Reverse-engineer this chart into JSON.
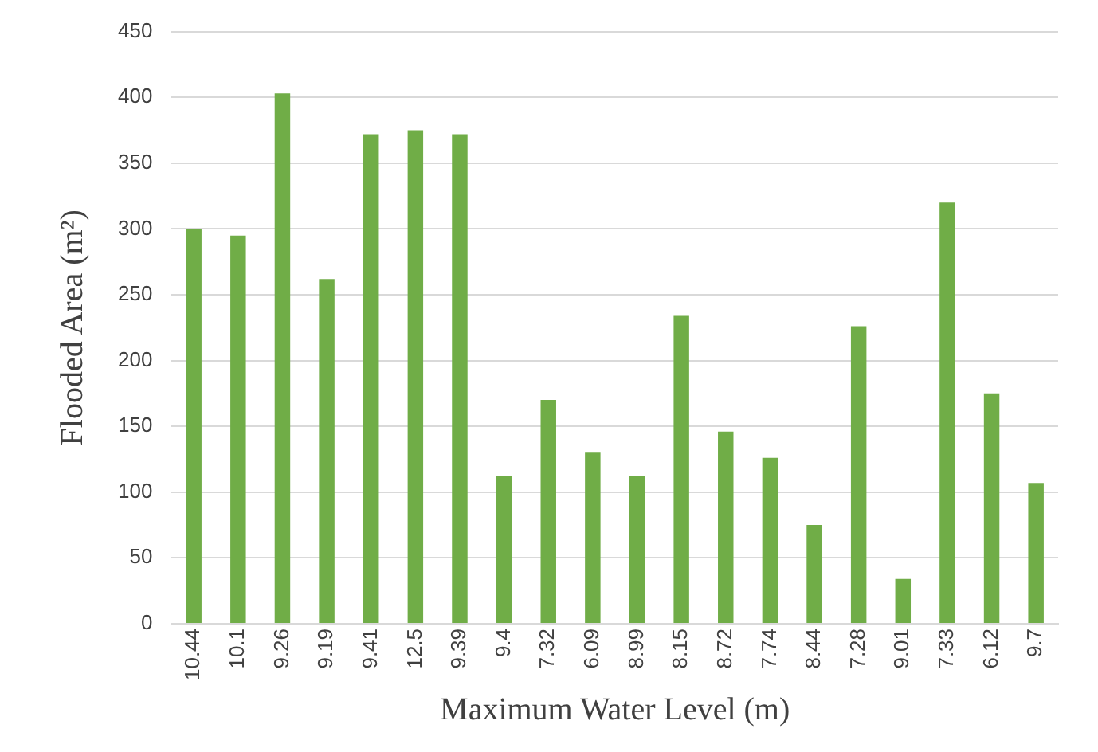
{
  "chart_data": {
    "type": "bar",
    "xlabel": "Maximum Water Level (m)",
    "ylabel": "Flooded Area (m²)",
    "categories": [
      "10.44",
      "10.1",
      "9.26",
      "9.19",
      "9.41",
      "12.5",
      "9.39",
      "9.4",
      "7.32",
      "6.09",
      "8.99",
      "8.15",
      "8.72",
      "7.74",
      "8.44",
      "7.28",
      "9.01",
      "7.33",
      "6.12",
      "9.7"
    ],
    "values": [
      300,
      295,
      403,
      262,
      372,
      375,
      372,
      112,
      170,
      130,
      112,
      234,
      146,
      126,
      75,
      226,
      34,
      320,
      175,
      107
    ],
    "color": "#70ad47",
    "ylim": [
      0,
      450
    ],
    "yticks": [
      0,
      50,
      100,
      150,
      200,
      250,
      300,
      350,
      400,
      450
    ],
    "grid": "y",
    "legend": false
  }
}
